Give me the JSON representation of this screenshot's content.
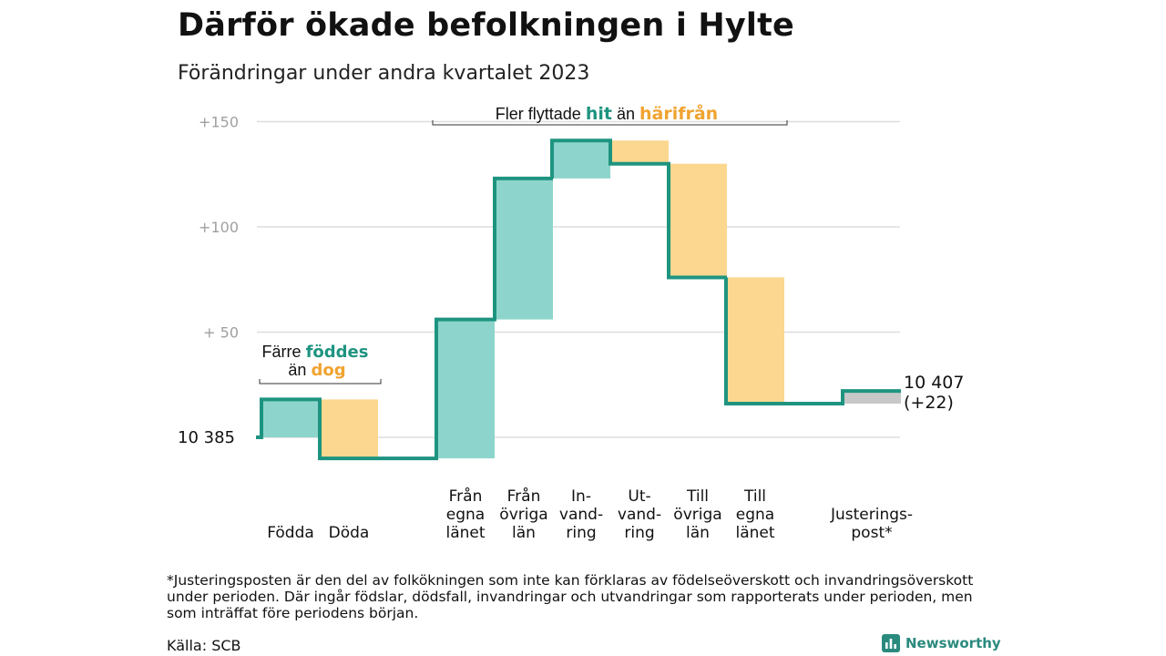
{
  "title": "Därför ökade befolkningen i Hylte",
  "subtitle": "Förändringar under andra kvartalet 2023",
  "chart_data": {
    "type": "waterfall",
    "start_value": 10385,
    "start_label": "10  385",
    "end_value": 10407,
    "end_label_line1": "10 407",
    "end_label_line2": "(+22)",
    "y_ticks": [
      {
        "value": 150,
        "label": "+150"
      },
      {
        "value": 100,
        "label": "+100"
      },
      {
        "value": 50,
        "label": "+  50"
      }
    ],
    "ylim": [
      -10,
      155
    ],
    "steps": [
      {
        "label": [
          "Födda"
        ],
        "change": 18,
        "direction": "increase"
      },
      {
        "label": [
          "Döda"
        ],
        "change": -28,
        "direction": "decrease"
      },
      {
        "label": [
          "Från",
          "egna",
          "länet"
        ],
        "change": 66,
        "direction": "increase"
      },
      {
        "label": [
          "Från",
          "övriga",
          "län"
        ],
        "change": 67,
        "direction": "increase"
      },
      {
        "label": [
          "In-",
          "vand-",
          "ring"
        ],
        "change": 18,
        "direction": "increase"
      },
      {
        "label": [
          "Ut-",
          "vand-",
          "ring"
        ],
        "change": -11,
        "direction": "decrease"
      },
      {
        "label": [
          "Till",
          "övriga",
          "län"
        ],
        "change": -54,
        "direction": "decrease"
      },
      {
        "label": [
          "Till",
          "egna",
          "länet"
        ],
        "change": -60,
        "direction": "decrease"
      },
      {
        "label": [
          "Justerings-",
          "post*"
        ],
        "change": 6,
        "direction": "adjustment"
      }
    ],
    "annotations": {
      "migration": {
        "prefix": "Fler flyttade ",
        "hit": "hit",
        "middle": " än ",
        "harifran": "härifrån"
      },
      "births": {
        "line1_prefix": "Färre ",
        "line1_em": "föddes",
        "line2_prefix": "än ",
        "line2_em": "dog"
      }
    },
    "colors": {
      "increase": "#8dd5cc",
      "decrease": "#fbd78f",
      "adjustment": "#c8c8c8",
      "line": "#1e9480",
      "teal_text": "#1e9480",
      "orange_text": "#f0a330",
      "grid": "#dddddd",
      "tick_text": "#a0a0a0"
    }
  },
  "footnote": "*Justeringsposten är den del av folkökningen som inte kan förklaras av födelseöverskott och invandringsöverskott under perioden. Där ingår födslar, dödsfall, invandringar och utvandringar som rapporterats under perioden, men som inträffat före periodens början.",
  "source": "Källa: SCB",
  "logo": {
    "text": "Newsworthy",
    "icon": "bar-chart-icon"
  }
}
